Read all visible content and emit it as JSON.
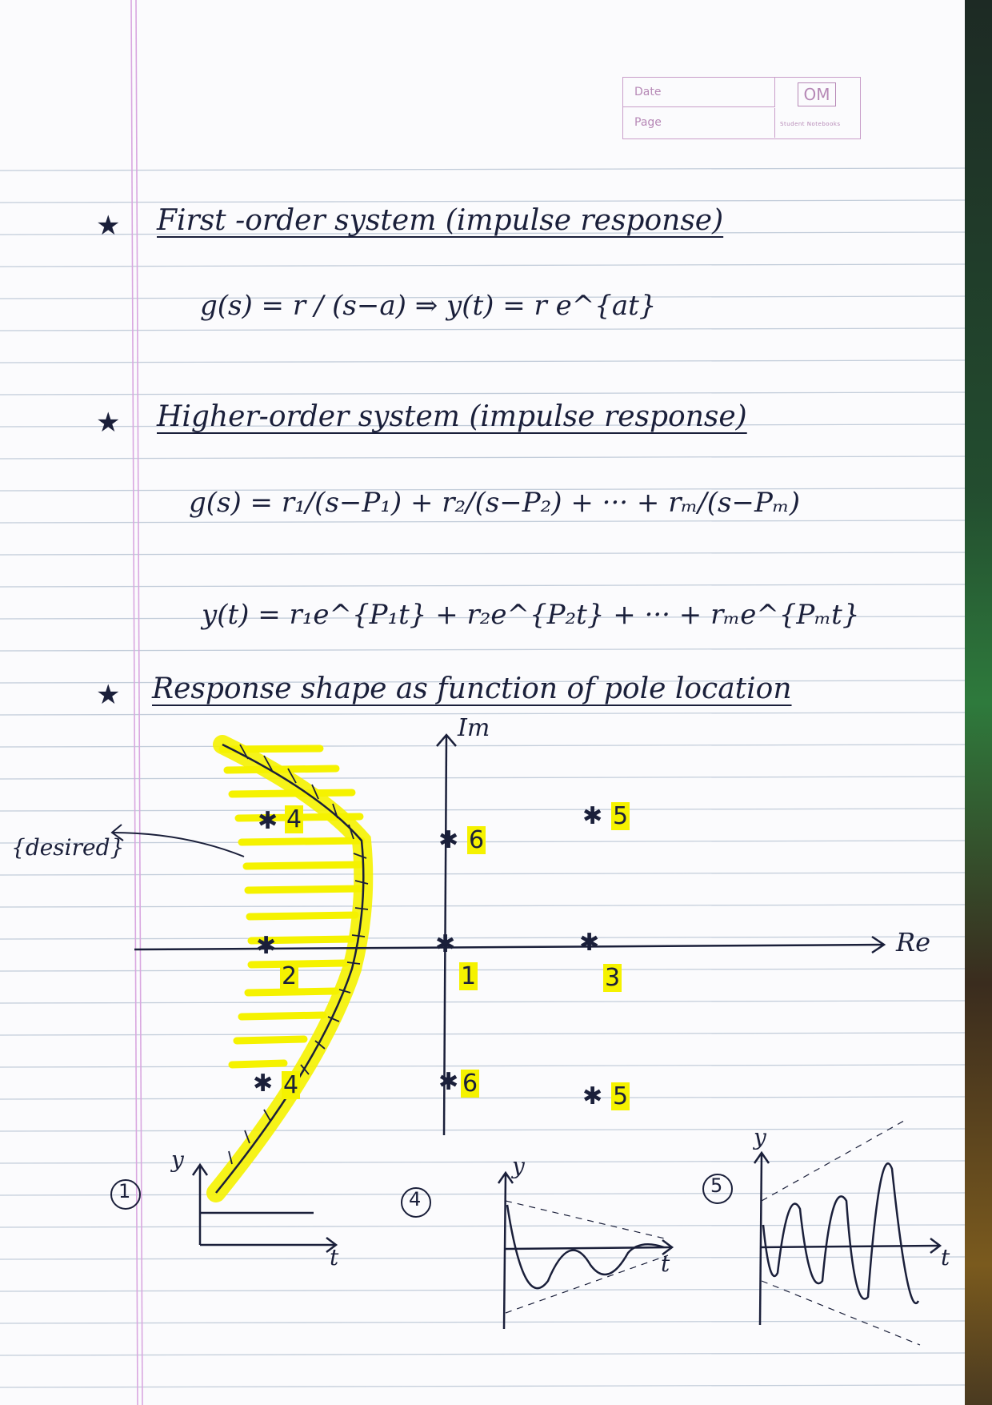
{
  "header": {
    "date_label": "Date",
    "page_label": "Page",
    "logo_text": "OM",
    "logo_caption": "Student Notebooks"
  },
  "sections": [
    {
      "star": "★",
      "heading": "First -order system (impulse response)"
    },
    {
      "star": "★",
      "heading": "Higher-order system (impulse response)"
    },
    {
      "star": "★",
      "heading": "Response shape as function of pole location"
    }
  ],
  "equations": {
    "first_order": "g(s) = r / (s−a)   ⇒   y(t) = r e^{at}",
    "higher_order_g": "g(s) = r₁/(s−P₁) + r₂/(s−P₂) + ··· + rₘ/(s−Pₘ)",
    "higher_order_y": "y(t) = r₁e^{P₁t} + r₂e^{P₂t} + ··· + rₘe^{Pₘt}"
  },
  "pole_plot": {
    "axis_im": "Im",
    "axis_re": "Re",
    "desired_label": "{desired}",
    "pole_marker": "✱",
    "pole_labels": [
      "4",
      "6",
      "5",
      "2",
      "1",
      "3",
      "4",
      "6",
      "5"
    ]
  },
  "response_sketches": [
    {
      "tag": "1",
      "y_label": "y",
      "t_label": "t"
    },
    {
      "tag": "4",
      "y_label": "y",
      "t_label": "t"
    },
    {
      "tag": "5",
      "y_label": "y",
      "t_label": "t"
    }
  ],
  "colors": {
    "ink": "#1a1f3a",
    "highlight": "#f5f200",
    "rule_line": "#c3cdda",
    "margin_line": "#d9a7e0"
  }
}
